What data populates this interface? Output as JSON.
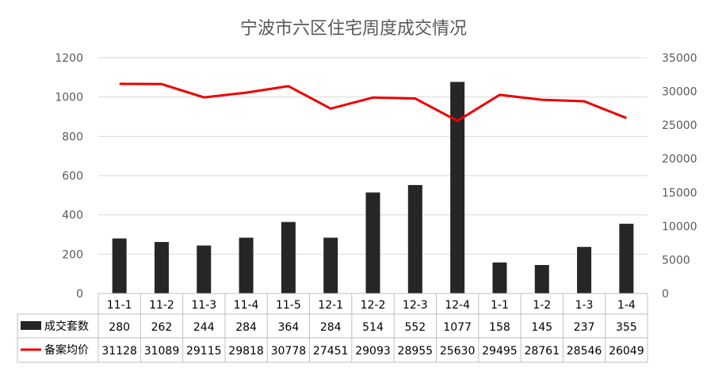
{
  "chart_data": {
    "type": "bar",
    "title": "宁波市六区住宅周度成交情况",
    "categories": [
      "11-1",
      "11-2",
      "11-3",
      "11-4",
      "11-5",
      "12-1",
      "12-2",
      "12-3",
      "12-4",
      "1-1",
      "1-2",
      "1-3",
      "1-4"
    ],
    "series": [
      {
        "name": "成交套数",
        "type": "bar",
        "axis": "left",
        "color": "#262626",
        "values": [
          280,
          262,
          244,
          284,
          364,
          284,
          514,
          552,
          1077,
          158,
          145,
          237,
          355
        ]
      },
      {
        "name": "备案均价",
        "type": "line",
        "axis": "right",
        "color": "#ee0000",
        "values": [
          31128,
          31089,
          29115,
          29818,
          30778,
          27451,
          29093,
          28955,
          25630,
          29495,
          28761,
          28546,
          26049
        ]
      }
    ],
    "y_left": {
      "ylim": [
        0,
        1200
      ],
      "ticks": [
        0,
        200,
        400,
        600,
        800,
        1000,
        1200
      ]
    },
    "y_right": {
      "ylim": [
        0,
        35000
      ],
      "ticks": [
        0,
        5000,
        10000,
        15000,
        20000,
        25000,
        30000,
        35000
      ]
    },
    "grid": true,
    "legend": "data-table"
  }
}
